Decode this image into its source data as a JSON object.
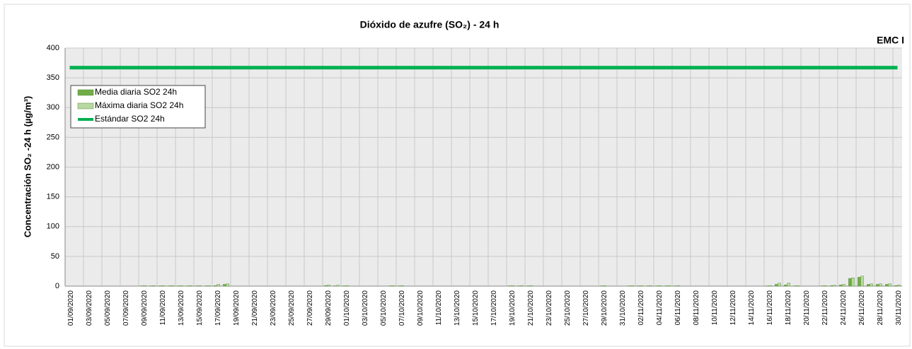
{
  "chart_data": {
    "type": "bar",
    "title": "Dióxido de azufre (SO₂) - 24 h",
    "corner_label": "EMC I",
    "y_label": "Concentración  SO₂ -24 h (µg/m³)",
    "categories": [
      "01/09/2020",
      null,
      "03/09/2020",
      null,
      "05/09/2020",
      null,
      "07/09/2020",
      null,
      "09/09/2020",
      null,
      "11/09/2020",
      null,
      "13/09/2020",
      null,
      "15/09/2020",
      null,
      "17/09/2020",
      null,
      "19/09/2020",
      null,
      "21/09/2020",
      null,
      "23/09/2020",
      null,
      "25/09/2020",
      null,
      "27/09/2020",
      null,
      "29/09/2020",
      null,
      "01/10/2020",
      null,
      "03/10/2020",
      null,
      "05/10/2020",
      null,
      "07/10/2020",
      null,
      "09/10/2020",
      null,
      "11/10/2020",
      null,
      "13/10/2020",
      null,
      "15/10/2020",
      null,
      "17/10/2020",
      null,
      "19/10/2020",
      null,
      "21/10/2020",
      null,
      "23/10/2020",
      null,
      "25/10/2020",
      null,
      "27/10/2020",
      null,
      "29/10/2020",
      null,
      "31/10/2020",
      null,
      "02/11/2020",
      null,
      "04/11/2020",
      null,
      "06/11/2020",
      null,
      "08/11/2020",
      null,
      "10/11/2020",
      null,
      "12/11/2020",
      null,
      "14/11/2020",
      null,
      "16/11/2020",
      null,
      "18/11/2020",
      null,
      "20/11/2020",
      null,
      "22/11/2020",
      null,
      "24/11/2020",
      null,
      "26/11/2020",
      null,
      "28/11/2020",
      null,
      "30/11/2020"
    ],
    "series": [
      {
        "name": "Media diaria SO2 24h",
        "color": "#70ad47",
        "values": [
          0,
          0,
          0,
          0,
          0,
          0,
          0,
          0,
          0.5,
          0.5,
          0.5,
          0.5,
          0.5,
          0.5,
          0.5,
          0.5,
          1,
          3,
          0,
          0,
          0,
          0,
          0,
          0,
          0,
          0,
          0,
          0,
          1,
          0.5,
          0.5,
          0,
          0,
          0,
          0,
          0.5,
          0.5,
          0,
          0,
          0,
          0,
          0,
          0,
          0,
          0,
          0,
          0,
          0,
          0.5,
          0.5,
          0.5,
          0,
          0,
          0,
          0,
          0,
          0,
          0,
          0.5,
          0,
          0,
          0.5,
          0.5,
          0.5,
          0.5,
          0.5,
          0.5,
          0,
          0,
          0,
          0,
          0,
          0,
          0,
          0,
          0,
          0.5,
          3,
          2,
          0.5,
          0,
          0,
          0.5,
          1,
          2,
          13,
          15,
          3,
          3,
          3,
          1
        ]
      },
      {
        "name": "Máxima diaria SO2 24h",
        "color": "#b7d9a0",
        "values": [
          0,
          0,
          0,
          0,
          0,
          0,
          0,
          0,
          1,
          1,
          1,
          1,
          1,
          1,
          1,
          1,
          3,
          4,
          0,
          0,
          0,
          0,
          0,
          0,
          0,
          0,
          0,
          0,
          2,
          1.5,
          1,
          0,
          0,
          0,
          0,
          1,
          1,
          0,
          0,
          0,
          0,
          0,
          0,
          0,
          0,
          0,
          0,
          0,
          1,
          1,
          1,
          0,
          0,
          0,
          0,
          0,
          0,
          0,
          1,
          0,
          0,
          1,
          1,
          1,
          1,
          1,
          1,
          0,
          0,
          0,
          0,
          0,
          0,
          0,
          0,
          0,
          1,
          5,
          5,
          1,
          0,
          0,
          1,
          1.5,
          3,
          14,
          17,
          4,
          4,
          4,
          2
        ]
      }
    ],
    "reference_line": {
      "name": "Estándar SO2 24h",
      "color": "#00b050",
      "value": 367
    },
    "ylim": [
      0,
      400
    ],
    "yticks": [
      0,
      50,
      100,
      150,
      200,
      250,
      300,
      350,
      400
    ],
    "grid": true,
    "legend": "upper left"
  }
}
